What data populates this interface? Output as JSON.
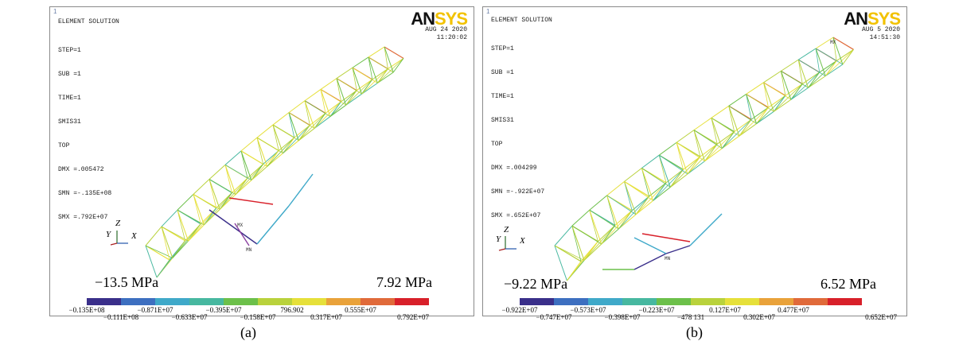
{
  "colors": [
    "#3a2f8a",
    "#3d6fc0",
    "#3fa9c9",
    "#47b8a0",
    "#6cc04a",
    "#b9d23c",
    "#e6e03a",
    "#e9a23a",
    "#e06a3a",
    "#d8202a"
  ],
  "panels": [
    {
      "corner": "1",
      "title": "ELEMENT SOLUTION",
      "info": [
        "STEP=1",
        "SUB =1",
        "TIME=1",
        "SMIS31",
        "TOP",
        "DMX =.005472",
        "SMN =-.135E+08",
        "SMX =.792E+07"
      ],
      "logo_a": "AN",
      "logo_b": "SYS",
      "date": "AUG 24 2020",
      "time": "11:20:02",
      "min_label": "−13.5 MPa",
      "max_label": "7.92 MPa",
      "ticks_bottom": [
        "−0.135E+08",
        "−0.871E+07",
        "−0.395E+07",
        "796.902",
        "0.555E+07"
      ],
      "ticks_top": [
        "−0.111E+08",
        "−0.633E+07",
        "−0.158E+07",
        "0.317E+07",
        "0.792E+07"
      ],
      "mx": "MX",
      "mn": "MN",
      "axes": {
        "z": "Z",
        "y": "Y",
        "x": "X"
      },
      "caption": "(a)"
    },
    {
      "corner": "1",
      "title": "ELEMENT SOLUTION",
      "info": [
        "STEP=1",
        "SUB =1",
        "TIME=1",
        "SMIS31",
        "TOP",
        "DMX =.004299",
        "SMN =-.922E+07",
        "SMX =.652E+07"
      ],
      "logo_a": "AN",
      "logo_b": "SYS",
      "date": "AUG  5 2020",
      "time": "14:51:30",
      "min_label": "−9.22 MPa",
      "max_label": "6.52 MPa",
      "ticks_bottom": [
        "−0.922E+07",
        "−0.573E+07",
        "−0.223E+07",
        "0.127E+07",
        "0.477E+07"
      ],
      "ticks_top": [
        "−0.747E+07",
        "−0.398E+07",
        "−478 131",
        "0.302E+07",
        "0.652E+07"
      ],
      "mx": "MX",
      "mn": "MN",
      "axes": {
        "z": "Z",
        "y": "Y",
        "x": "X"
      },
      "caption": "(b)"
    }
  ]
}
